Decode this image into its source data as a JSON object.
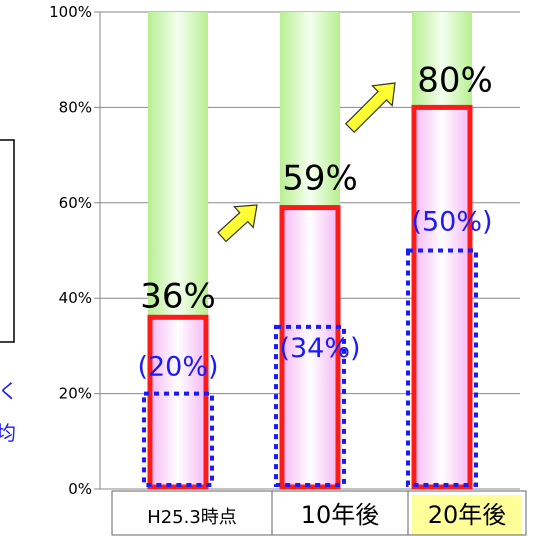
{
  "chart_data": {
    "type": "bar",
    "categories": [
      "H25.3時点",
      "10年後",
      "20年後"
    ],
    "series": [
      {
        "values": [
          36,
          59,
          80
        ]
      },
      {
        "values": [
          20,
          34,
          50
        ]
      }
    ],
    "data_labels": [
      "36%",
      "59%",
      "80%"
    ],
    "paren_labels": [
      "(20%)",
      "(34%)",
      "(50%)"
    ],
    "ylim": [
      0,
      100
    ],
    "yticks": [
      "0%",
      "20%",
      "40%",
      "60%",
      "80%",
      "100%"
    ],
    "grid": true,
    "target": 100
  },
  "colors": {
    "outer": "#ff1a1a",
    "inner": "#1a1aff",
    "fill": "#f9c6f9",
    "background_bar": "#b8ef90",
    "arrow": "#ffff33",
    "highlight_bg": "#ffff99",
    "highlight_text": "#ff1a1a",
    "side_text": "#1a1aff"
  },
  "side_fragment": [
    "く",
    "均"
  ]
}
